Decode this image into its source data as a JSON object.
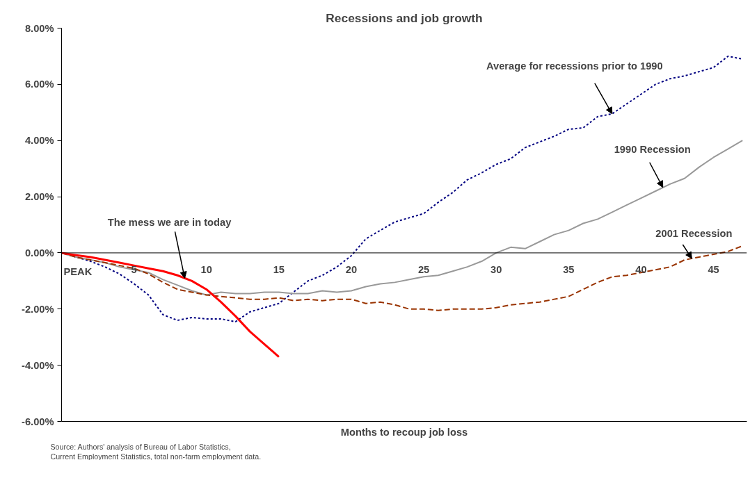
{
  "chart_data": {
    "type": "line",
    "title": "Recessions and job growth",
    "xlabel": "Months to recoup job loss",
    "xlim": [
      0,
      47.3
    ],
    "ylim": [
      -6,
      8
    ],
    "xticks": [
      {
        "value": 0,
        "label": "PEAK"
      },
      5,
      10,
      15,
      20,
      25,
      30,
      35,
      40,
      45
    ],
    "yticks": [
      {
        "value": -6,
        "label": "-6.00%"
      },
      {
        "value": -4,
        "label": "-4.00%"
      },
      {
        "value": -2,
        "label": "-2.00%"
      },
      {
        "value": 0,
        "label": "0.00%"
      },
      {
        "value": 2,
        "label": "2.00%"
      },
      {
        "value": 4,
        "label": "4.00%"
      },
      {
        "value": 6,
        "label": "6.00%"
      },
      {
        "value": 8,
        "label": "8.00%"
      }
    ],
    "grid": false,
    "marker": "none",
    "series": [
      {
        "color": "#000080",
        "line_style": "dotted",
        "x": [
          0,
          1,
          2,
          3,
          4,
          5,
          6,
          7,
          8,
          9,
          10,
          11,
          12,
          13,
          14,
          15,
          16,
          17,
          18,
          19,
          20,
          21,
          22,
          23,
          24,
          25,
          26,
          27,
          28,
          29,
          30,
          31,
          32,
          33,
          34,
          35,
          36,
          37,
          38,
          39,
          40,
          41,
          42,
          43,
          44,
          45,
          46,
          47
        ],
        "values": [
          0,
          -0.15,
          -0.3,
          -0.5,
          -0.75,
          -1.1,
          -1.5,
          -2.2,
          -2.4,
          -2.3,
          -2.35,
          -2.35,
          -2.45,
          -2.1,
          -1.95,
          -1.8,
          -1.4,
          -1.0,
          -0.8,
          -0.5,
          -0.1,
          0.5,
          0.8,
          1.1,
          1.25,
          1.4,
          1.8,
          2.15,
          2.6,
          2.85,
          3.15,
          3.35,
          3.75,
          3.95,
          4.15,
          4.4,
          4.45,
          4.85,
          4.95,
          5.3,
          5.65,
          6.0,
          6.2,
          6.3,
          6.45,
          6.6,
          7.0,
          6.9
        ]
      },
      {
        "color": "#999999",
        "line_style": "solid",
        "x": [
          0,
          1,
          2,
          3,
          4,
          5,
          6,
          7,
          8,
          9,
          10,
          11,
          12,
          13,
          14,
          15,
          16,
          17,
          18,
          19,
          20,
          21,
          22,
          23,
          24,
          25,
          26,
          27,
          28,
          29,
          30,
          31,
          32,
          33,
          34,
          35,
          36,
          37,
          38,
          39,
          40,
          41,
          42,
          43,
          44,
          45,
          46,
          47
        ],
        "values": [
          0,
          -0.15,
          -0.25,
          -0.35,
          -0.5,
          -0.6,
          -0.7,
          -0.95,
          -1.15,
          -1.35,
          -1.5,
          -1.4,
          -1.45,
          -1.45,
          -1.4,
          -1.4,
          -1.45,
          -1.45,
          -1.35,
          -1.4,
          -1.35,
          -1.2,
          -1.1,
          -1.05,
          -0.95,
          -0.85,
          -0.8,
          -0.65,
          -0.5,
          -0.3,
          0.0,
          0.2,
          0.15,
          0.4,
          0.65,
          0.8,
          1.05,
          1.2,
          1.45,
          1.7,
          1.95,
          2.2,
          2.45,
          2.65,
          3.05,
          3.4,
          3.7,
          4.0
        ]
      },
      {
        "color": "#993300",
        "line_style": "dashed",
        "x": [
          0,
          1,
          2,
          3,
          4,
          5,
          6,
          7,
          8,
          9,
          10,
          11,
          12,
          13,
          14,
          15,
          16,
          17,
          18,
          19,
          20,
          21,
          22,
          23,
          24,
          25,
          26,
          27,
          28,
          29,
          30,
          31,
          32,
          33,
          34,
          35,
          36,
          37,
          38,
          39,
          40,
          41,
          42,
          43,
          44,
          45,
          46,
          47
        ],
        "values": [
          0,
          -0.15,
          -0.25,
          -0.35,
          -0.45,
          -0.55,
          -0.75,
          -1.05,
          -1.3,
          -1.4,
          -1.5,
          -1.55,
          -1.6,
          -1.65,
          -1.65,
          -1.6,
          -1.7,
          -1.65,
          -1.7,
          -1.65,
          -1.65,
          -1.8,
          -1.75,
          -1.85,
          -2.0,
          -2.0,
          -2.05,
          -2.0,
          -2.0,
          -2.0,
          -1.95,
          -1.85,
          -1.8,
          -1.75,
          -1.65,
          -1.55,
          -1.3,
          -1.05,
          -0.85,
          -0.8,
          -0.7,
          -0.6,
          -0.5,
          -0.25,
          -0.15,
          -0.05,
          0.05,
          0.25
        ]
      },
      {
        "color": "#ff0000",
        "line_style": "solid",
        "x": [
          0,
          1,
          2,
          3,
          4,
          5,
          6,
          7,
          8,
          9,
          10,
          11,
          12,
          13,
          14,
          15
        ],
        "values": [
          0,
          -0.08,
          -0.15,
          -0.25,
          -0.35,
          -0.45,
          -0.55,
          -0.65,
          -0.8,
          -1.0,
          -1.3,
          -1.75,
          -2.25,
          -2.8,
          -3.25,
          -3.7
        ]
      }
    ],
    "annotations": [
      {
        "text": "Average for recessions prior to 1990",
        "x": 38,
        "y": 4.95
      },
      {
        "text": "1990 Recession",
        "x": 41.5,
        "y": 2.33
      },
      {
        "text": "2001 Recession",
        "x": 43.5,
        "y": -0.2
      },
      {
        "text": "The mess we are in today",
        "x": 8.5,
        "y": -0.9
      },
      "Source: Authors' analysis of Bureau of Labor Statistics,",
      "Current Employment Statistics, total non-farm employment data."
    ]
  }
}
